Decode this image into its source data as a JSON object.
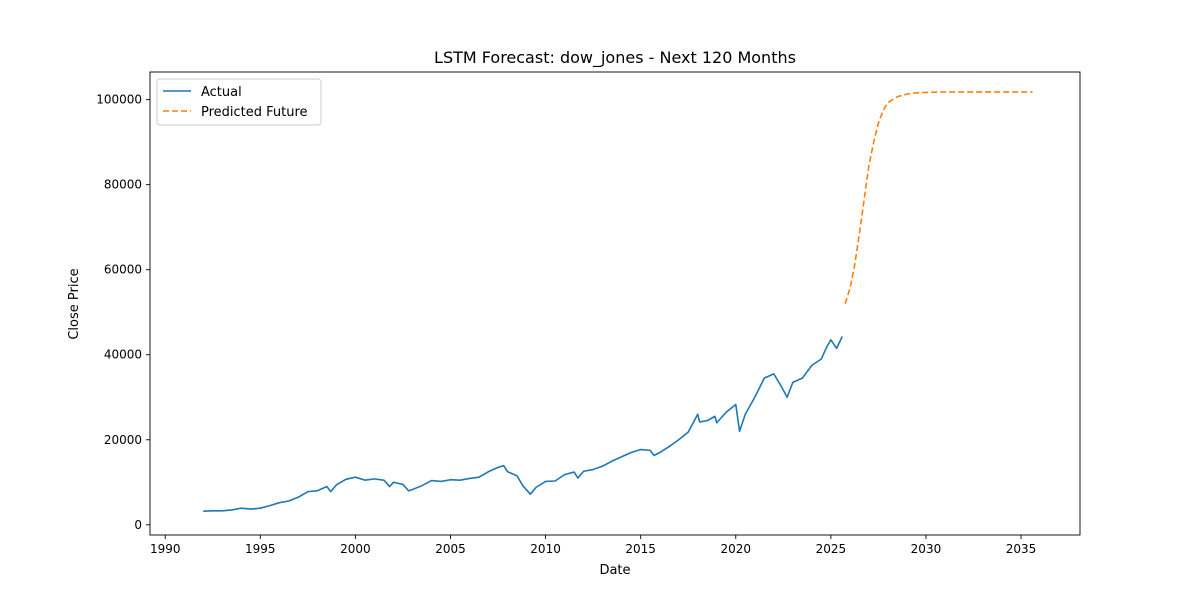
{
  "chart_data": {
    "type": "line",
    "title": "LSTM Forecast: dow_jones - Next 120 Months",
    "xlabel": "Date",
    "ylabel": "Close Price",
    "xlim": [
      1989.2,
      2038.1
    ],
    "ylim": [
      -2400,
      106500
    ],
    "x_ticks": [
      1990,
      1995,
      2000,
      2005,
      2010,
      2015,
      2020,
      2025,
      2030,
      2035
    ],
    "y_ticks": [
      0,
      20000,
      40000,
      60000,
      80000,
      100000
    ],
    "x_tick_labels": [
      "1990",
      "1995",
      "2000",
      "2005",
      "2010",
      "2015",
      "2020",
      "2025",
      "2030",
      "2035"
    ],
    "y_tick_labels": [
      "0",
      "20000",
      "40000",
      "60000",
      "80000",
      "100000"
    ],
    "grid": false,
    "legend": {
      "placement": "top-left"
    },
    "series": [
      {
        "name": "Actual",
        "color": "#1f77b4",
        "style": "solid",
        "x": [
          1992.0,
          1992.5,
          1993.0,
          1993.5,
          1994.0,
          1994.5,
          1995.0,
          1995.5,
          1996.0,
          1996.5,
          1997.0,
          1997.5,
          1998.0,
          1998.5,
          1998.7,
          1999.0,
          1999.5,
          2000.0,
          2000.5,
          2001.0,
          2001.5,
          2001.8,
          2002.0,
          2002.5,
          2002.8,
          2003.0,
          2003.5,
          2004.0,
          2004.5,
          2005.0,
          2005.5,
          2006.0,
          2006.5,
          2007.0,
          2007.5,
          2007.8,
          2008.0,
          2008.5,
          2008.8,
          2009.2,
          2009.5,
          2010.0,
          2010.5,
          2011.0,
          2011.5,
          2011.7,
          2012.0,
          2012.5,
          2013.0,
          2013.5,
          2014.0,
          2014.5,
          2015.0,
          2015.5,
          2015.7,
          2016.0,
          2016.5,
          2017.0,
          2017.5,
          2018.0,
          2018.1,
          2018.5,
          2018.9,
          2019.0,
          2019.5,
          2020.0,
          2020.2,
          2020.5,
          2021.0,
          2021.5,
          2022.0,
          2022.4,
          2022.7,
          2023.0,
          2023.5,
          2024.0,
          2024.5,
          2024.8,
          2025.0,
          2025.3,
          2025.6
        ],
        "y": [
          3200,
          3300,
          3300,
          3500,
          3900,
          3700,
          3900,
          4500,
          5200,
          5600,
          6500,
          7800,
          8000,
          9000,
          7800,
          9400,
          10700,
          11200,
          10500,
          10800,
          10500,
          9000,
          10000,
          9500,
          8000,
          8300,
          9200,
          10400,
          10200,
          10600,
          10500,
          10900,
          11200,
          12500,
          13500,
          13900,
          12500,
          11500,
          9200,
          7200,
          8800,
          10200,
          10300,
          11800,
          12400,
          11000,
          12600,
          13000,
          13800,
          15000,
          16000,
          17000,
          17700,
          17500,
          16300,
          17000,
          18400,
          20000,
          21800,
          26000,
          24200,
          24500,
          25500,
          24000,
          26500,
          28300,
          22000,
          26000,
          30000,
          34500,
          35500,
          32500,
          30000,
          33500,
          34500,
          37500,
          39000,
          42000,
          43500,
          41500,
          44300
        ]
      },
      {
        "name": "Predicted Future",
        "color": "#ff7f0e",
        "style": "dashed",
        "x": [
          2025.75,
          2026.0,
          2026.25,
          2026.5,
          2026.75,
          2027.0,
          2027.25,
          2027.5,
          2027.75,
          2028.0,
          2028.5,
          2029.0,
          2029.5,
          2030.0,
          2031.0,
          2032.0,
          2033.0,
          2034.0,
          2035.0,
          2035.6
        ],
        "y": [
          52000,
          55500,
          61000,
          68500,
          76500,
          84500,
          90000,
          94500,
          97500,
          99300,
          100700,
          101300,
          101600,
          101700,
          101800,
          101800,
          101800,
          101800,
          101800,
          101800
        ]
      }
    ]
  }
}
